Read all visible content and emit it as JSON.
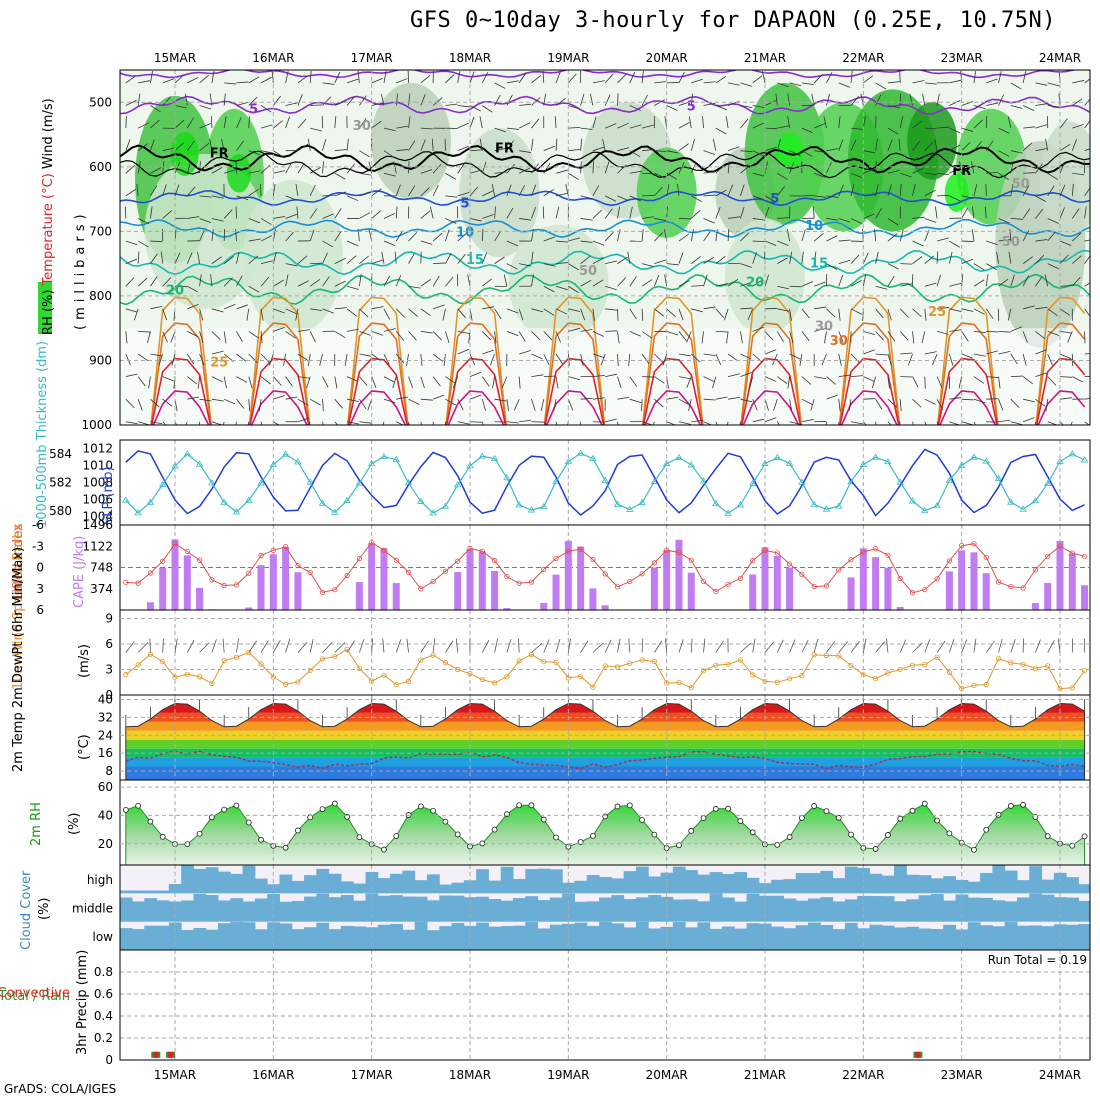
{
  "title": "GFS 0~10day 3-hourly for DAPAON (0.25E, 10.75N)",
  "credit": "GrADS: COLA/IGES",
  "colors": {
    "rh_green": "#2fd92f",
    "temp_red": "#e0202a",
    "slp": "#1f3bd6",
    "thickness": "#3ab9c7",
    "lifted": "#e05050",
    "cape": "#c07cf0",
    "wind": "#e0962a",
    "rh2m": "#2a8a2a",
    "cloud": "#6aaed6",
    "precip_rain": "#2a9a2a",
    "precip_conv": "#e02020"
  },
  "chart_data": {
    "type": "meteogram",
    "dates": [
      "15MAR",
      "16MAR",
      "17MAR",
      "18MAR",
      "19MAR",
      "20MAR",
      "21MAR",
      "22MAR",
      "23MAR",
      "24MAR"
    ],
    "panels": [
      {
        "name": "upper",
        "ylabel_parts": [
          "RH (%)",
          "Temperature (°C)",
          "Wind (m/s)"
        ],
        "ylabel_sub": "(millibars)",
        "yticks": [
          500,
          600,
          700,
          800,
          900,
          1000
        ],
        "ylim": [
          1000,
          450
        ],
        "contour_labels": [
          {
            "text": "5",
            "day": 0.8,
            "p": 510,
            "color": "#8a2bd0"
          },
          {
            "text": "5",
            "day": 5.25,
            "p": 505,
            "color": "#8a2bd0"
          },
          {
            "text": "FR",
            "day": 0.45,
            "p": 578,
            "color": "#000"
          },
          {
            "text": "FR",
            "day": 3.35,
            "p": 570,
            "color": "#000"
          },
          {
            "text": "FR",
            "day": 8.0,
            "p": 605,
            "color": "#000"
          },
          {
            "text": "5",
            "day": 2.95,
            "p": 655,
            "color": "#2050d0"
          },
          {
            "text": "5",
            "day": 6.1,
            "p": 648,
            "color": "#2050d0"
          },
          {
            "text": "10",
            "day": 2.95,
            "p": 700,
            "color": "#1a8fd0"
          },
          {
            "text": "10",
            "day": 6.5,
            "p": 690,
            "color": "#1a8fd0"
          },
          {
            "text": "15",
            "day": 3.05,
            "p": 743,
            "color": "#16b8b0"
          },
          {
            "text": "15",
            "day": 6.55,
            "p": 748,
            "color": "#16b8b0"
          },
          {
            "text": "20",
            "day": 0.0,
            "p": 790,
            "color": "#18b870"
          },
          {
            "text": "20",
            "day": 5.9,
            "p": 778,
            "color": "#18b870"
          },
          {
            "text": "25",
            "day": 0.45,
            "p": 902,
            "color": "#e0962a"
          },
          {
            "text": "25",
            "day": 7.75,
            "p": 823,
            "color": "#e0962a"
          },
          {
            "text": "30",
            "day": 6.75,
            "p": 868,
            "color": "#e07020"
          },
          {
            "text": "50",
            "day": 4.2,
            "p": 760,
            "color": "#9a9a9a"
          },
          {
            "text": "50",
            "day": 8.5,
            "p": 715,
            "color": "#9a9a9a"
          },
          {
            "text": "50",
            "day": 8.6,
            "p": 625,
            "color": "#9a9a9a"
          },
          {
            "text": "30",
            "day": 1.9,
            "p": 535,
            "color": "#9a9a9a"
          },
          {
            "text": "30",
            "day": 6.6,
            "p": 846,
            "color": "#9a9a9a"
          }
        ]
      },
      {
        "name": "pressure",
        "ylabel_left": "1000-500mb Thickness (dm)",
        "ylabel_right": "SLP (mb)",
        "ytick_left": [
          580,
          582,
          584
        ],
        "ytick_right": [
          1004,
          1006,
          1008,
          1010,
          1012
        ]
      },
      {
        "name": "stability",
        "ylabel_left": "Lifted Index",
        "ylabel_right": "CAPE (J/kg)",
        "ytick_left": [
          -6,
          -3,
          0,
          3,
          6
        ],
        "ytick_right": [
          374,
          748,
          1122,
          1496
        ]
      },
      {
        "name": "wind10m",
        "ylabel": "10m Wind Speed & Barbs",
        "yunit": "(m/s)",
        "yticks": [
          0,
          3,
          6,
          9
        ]
      },
      {
        "name": "temp2m",
        "ylabel": "2m Temp 2m DewPt (6hr Min/Max)",
        "yunit": "(°C)",
        "yticks": [
          8,
          16,
          24,
          32,
          40
        ]
      },
      {
        "name": "rh2m",
        "ylabel": "2m RH",
        "yunit": "(%)",
        "yticks": [
          20,
          40,
          60
        ]
      },
      {
        "name": "cloud",
        "ylabel": "Cloud Cover",
        "yunit": "(%)",
        "levels": [
          "high",
          "middle",
          "low"
        ]
      },
      {
        "name": "precip",
        "ylabel_left": "Total / Rain",
        "ylabel_left2": "Convective",
        "ylabel": "3hr Precip (mm)",
        "yticks": [
          0,
          0.2,
          0.4,
          0.6,
          0.8
        ],
        "run_total": "Run Total = 0.19"
      }
    ]
  }
}
